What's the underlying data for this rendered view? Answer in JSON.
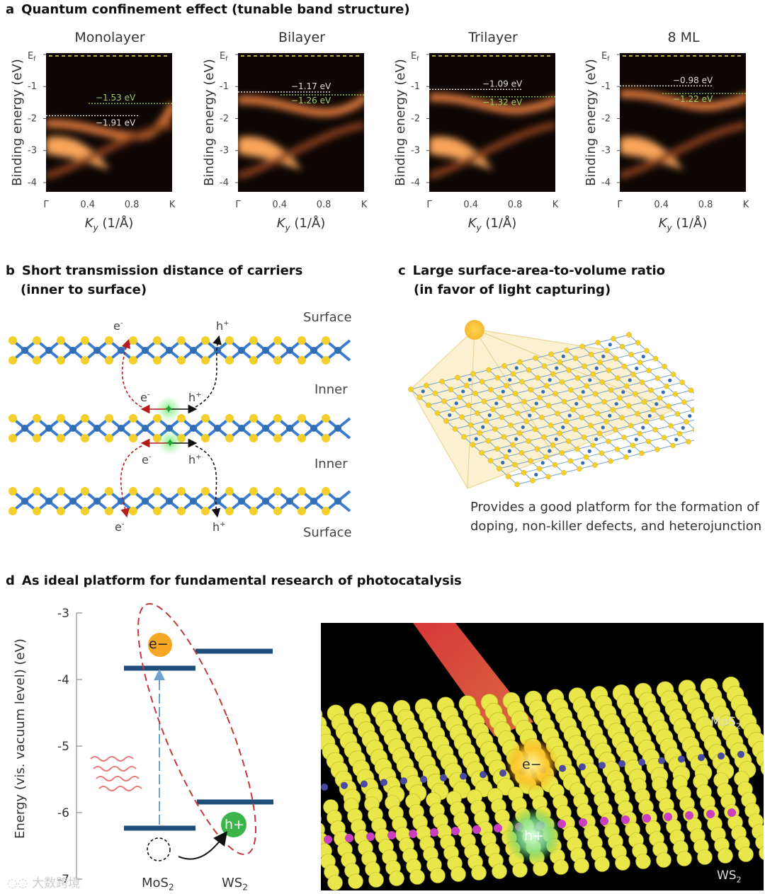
{
  "panel_a": {
    "letter": "a",
    "title": "Quantum confinement effect (tunable band structure)",
    "ylabel": "Binding energy (eV)",
    "xlabel": "K",
    "xlabel_sub": "y",
    "xlabel_unit": " (1/Å)",
    "yticks": [
      "E",
      "-1",
      "-2",
      "-3",
      "-4"
    ],
    "ef_sub": "f",
    "xticks": [
      "Γ",
      "0.4",
      "0.8",
      "K"
    ],
    "plots": [
      {
        "title": "Monolayer",
        "green_label": "−1.53 eV",
        "white_label": "−1.91 eV"
      },
      {
        "title": "Bilayer",
        "white_label": "−1.17 eV",
        "green_label": "−1.26 eV"
      },
      {
        "title": "Trilayer",
        "white_label": "−1.09 eV",
        "green_label": "−1.32 eV"
      },
      {
        "title": "8 ML",
        "white_label": "−0.98 eV",
        "green_label": "−1.22 eV"
      }
    ]
  },
  "panel_b": {
    "letter": "b",
    "title_line1": "Short transmission distance of carriers",
    "title_line2": "(inner to surface)",
    "surface_top": "Surface",
    "inner_1": "Inner",
    "inner_2": "Inner",
    "surface_bottom": "Surface",
    "e_label": "e",
    "h_label": "h",
    "minus": "-",
    "plus": "+"
  },
  "panel_c": {
    "letter": "c",
    "title_line1": "Large surface-area-to-volume ratio",
    "title_line2": "(in favor of light capturing)",
    "caption_line1": "Provides a good platform for the formation of",
    "caption_line2": "doping, non-killer defects, and heterojunction"
  },
  "panel_d": {
    "letter": "d",
    "title": "As ideal platform for fundamental research of photocatalysis",
    "ylabel": "Energy (vis. vacuum level) (eV)",
    "yticks": [
      "-3",
      "-4",
      "-5",
      "-6",
      "-7"
    ],
    "electron": "e−",
    "hole": "h+",
    "mos2": "MoS",
    "ws2": "WS",
    "sub2": "2",
    "render_mos2": "MoS",
    "render_ws2": "WS",
    "render_e": "e−",
    "render_h": "h+"
  },
  "watermark": "大数跨境",
  "colors": {
    "band_orange": "#f7a15a",
    "band_dark": "#0d0605",
    "level_blue": "#1f4e79",
    "dashed_red": "#c0393b",
    "electron_orange": "#f5a623",
    "hole_green": "#3bb54a",
    "atom_yellow": "#f2cf2b",
    "atom_blue": "#2f6db5"
  }
}
